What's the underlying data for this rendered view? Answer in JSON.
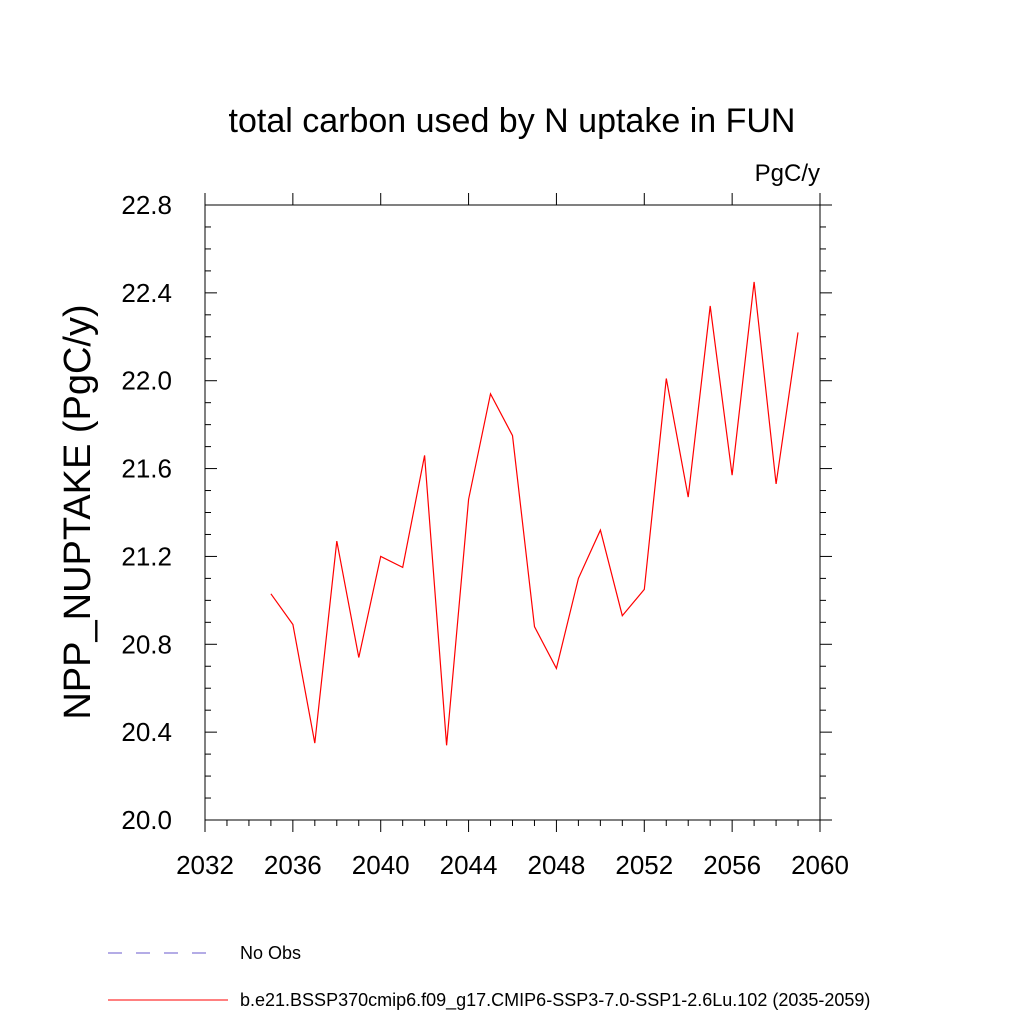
{
  "chart_data": {
    "type": "line",
    "title": "total carbon used by N uptake in FUN",
    "units": "PgC/y",
    "ylabel": "NPP_NUPTAKE  (PgC/y)",
    "xlabel": "",
    "xlim": [
      2032,
      2060
    ],
    "ylim": [
      20.0,
      22.8
    ],
    "x_ticks": [
      2032,
      2036,
      2040,
      2044,
      2048,
      2052,
      2056,
      2060
    ],
    "y_ticks": [
      20.0,
      20.4,
      20.8,
      21.2,
      21.6,
      22.0,
      22.4,
      22.8
    ],
    "x_tick_labels": [
      "2032",
      "2036",
      "2040",
      "2044",
      "2048",
      "2052",
      "2056",
      "2060"
    ],
    "y_tick_labels": [
      "20.0",
      "20.4",
      "20.8",
      "21.2",
      "21.6",
      "22.0",
      "22.4",
      "22.8"
    ],
    "grid": false,
    "legend_position": "bottom-left",
    "series": [
      {
        "name": "b.e21.BSSP370cmip6.f09_g17.CMIP6-SSP3-7.0-SSP1-2.6Lu.102 (2035-2059)",
        "color": "#ff0000",
        "dash": "solid",
        "x": [
          2035,
          2036,
          2037,
          2038,
          2039,
          2040,
          2041,
          2042,
          2043,
          2044,
          2045,
          2046,
          2047,
          2048,
          2049,
          2050,
          2051,
          2052,
          2053,
          2054,
          2055,
          2056,
          2057,
          2058,
          2059
        ],
        "y": [
          21.03,
          20.89,
          20.35,
          21.27,
          20.74,
          21.2,
          21.15,
          21.66,
          20.34,
          21.46,
          21.94,
          21.75,
          20.88,
          20.69,
          21.1,
          21.32,
          20.93,
          21.05,
          22.01,
          21.47,
          22.34,
          21.57,
          22.45,
          21.53,
          22.22
        ]
      }
    ],
    "legend": [
      {
        "label": "No Obs",
        "color": "#6a5acd",
        "dash": "dashed"
      },
      {
        "label": "b.e21.BSSP370cmip6.f09_g17.CMIP6-SSP3-7.0-SSP1-2.6Lu.102 (2035-2059)",
        "color": "#ff0000",
        "dash": "solid"
      }
    ]
  }
}
